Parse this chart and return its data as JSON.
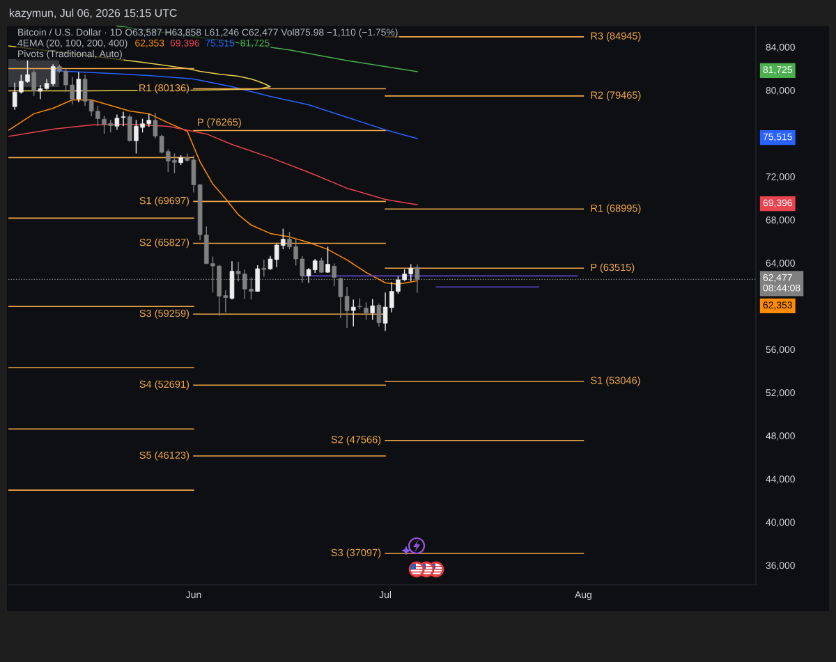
{
  "chart_data": {
    "type": "candlestick",
    "annotations": [
      "kazymun, Jul 06, 2026 15:15 UTC",
      "Bitcoin / U.S. Dollar · 1D O63,587 H63,858 L61,246 C62,477 Vol875.98 −1,110 (−1.75%)",
      "4EMA (20, 100, 200, 400)",
      "Pivots (Traditional, Auto)",
      "62,353",
      "69,396",
      "75,515",
      "81,725"
    ],
    "x": [
      "2026-05-04",
      "2026-05-05",
      "2026-05-06",
      "2026-05-07",
      "2026-05-08",
      "2026-05-09",
      "2026-05-10",
      "2026-05-11",
      "2026-05-12",
      "2026-05-13",
      "2026-05-14",
      "2026-05-15",
      "2026-05-16",
      "2026-05-17",
      "2026-05-18",
      "2026-05-19",
      "2026-05-20",
      "2026-05-21",
      "2026-05-22",
      "2026-05-23",
      "2026-05-24",
      "2026-05-25",
      "2026-05-26",
      "2026-05-27",
      "2026-05-28",
      "2026-05-29",
      "2026-05-30",
      "2026-05-31",
      "2026-06-01",
      "2026-06-02",
      "2026-06-03",
      "2026-06-04",
      "2026-06-05",
      "2026-06-06",
      "2026-06-07",
      "2026-06-08",
      "2026-06-09",
      "2026-06-10",
      "2026-06-11",
      "2026-06-12",
      "2026-06-13",
      "2026-06-14",
      "2026-06-15",
      "2026-06-16",
      "2026-06-17",
      "2026-06-18",
      "2026-06-19",
      "2026-06-20",
      "2026-06-21",
      "2026-06-22",
      "2026-06-23",
      "2026-06-24",
      "2026-06-25",
      "2026-06-26",
      "2026-06-27",
      "2026-06-28",
      "2026-06-29",
      "2026-06-30",
      "2026-07-01",
      "2026-07-02",
      "2026-07-03",
      "2026-07-04",
      "2026-07-05",
      "2026-07-06"
    ],
    "ohlc": [
      [
        78480,
        80700,
        78180,
        79830
      ],
      [
        79830,
        81440,
        79680,
        80840
      ],
      [
        80800,
        82780,
        80700,
        81440
      ],
      [
        81660,
        81870,
        79470,
        79940
      ],
      [
        79900,
        80480,
        79190,
        80150
      ],
      [
        80150,
        81020,
        80050,
        80630
      ],
      [
        80590,
        82410,
        80370,
        82200
      ],
      [
        82200,
        82390,
        81620,
        81760
      ],
      [
        81760,
        81980,
        79830,
        80480
      ],
      [
        80480,
        81230,
        78700,
        79190
      ],
      [
        79190,
        81660,
        78870,
        81020
      ],
      [
        81020,
        81440,
        78540,
        78980
      ],
      [
        79040,
        79120,
        77580,
        78050
      ],
      [
        78050,
        78540,
        76670,
        77360
      ],
      [
        77320,
        77620,
        75970,
        76830
      ],
      [
        76930,
        77250,
        76080,
        76720
      ],
      [
        76670,
        77750,
        76330,
        77410
      ],
      [
        77470,
        78010,
        76670,
        77540
      ],
      [
        77540,
        77750,
        75240,
        75320
      ],
      [
        75320,
        77250,
        74140,
        76670
      ],
      [
        76550,
        77360,
        76080,
        76890
      ],
      [
        76890,
        77800,
        76610,
        77220
      ],
      [
        77220,
        77900,
        75540,
        75750
      ],
      [
        75750,
        75880,
        74140,
        74250
      ],
      [
        74320,
        74530,
        72420,
        73450
      ],
      [
        73500,
        74140,
        72320,
        73320
      ],
      [
        73290,
        73970,
        73070,
        73760
      ],
      [
        73760,
        74140,
        73390,
        73500
      ],
      [
        73540,
        73950,
        70530,
        71240
      ],
      [
        71240,
        71300,
        66090,
        66620
      ],
      [
        66590,
        67380,
        63900,
        63940
      ],
      [
        63940,
        64590,
        61260,
        63720
      ],
      [
        63720,
        63830,
        59110,
        60930
      ],
      [
        60980,
        61470,
        59430,
        60790
      ],
      [
        60720,
        64160,
        60610,
        63230
      ],
      [
        63250,
        64110,
        62290,
        62980
      ],
      [
        62980,
        63400,
        60660,
        61580
      ],
      [
        61580,
        62650,
        60610,
        61370
      ],
      [
        61370,
        63790,
        61340,
        63470
      ],
      [
        63510,
        64310,
        62720,
        63400
      ],
      [
        63450,
        64650,
        63360,
        64370
      ],
      [
        64310,
        65770,
        63620,
        65660
      ],
      [
        65620,
        67170,
        65270,
        66200
      ],
      [
        66200,
        66880,
        65270,
        65490
      ],
      [
        65510,
        66200,
        63770,
        64370
      ],
      [
        64370,
        64650,
        62160,
        62800
      ],
      [
        62820,
        63510,
        62160,
        63400
      ],
      [
        63360,
        64370,
        63080,
        64200
      ],
      [
        64200,
        64480,
        63080,
        63140
      ],
      [
        63140,
        65510,
        63080,
        63880
      ],
      [
        63700,
        63960,
        61840,
        62670
      ],
      [
        62550,
        62650,
        58890,
        60870
      ],
      [
        60930,
        61790,
        57990,
        59580
      ],
      [
        59600,
        60610,
        58140,
        59920
      ],
      [
        59990,
        60720,
        59710,
        59950
      ],
      [
        59820,
        60350,
        58730,
        59370
      ],
      [
        59370,
        60660,
        58730,
        60030
      ],
      [
        60080,
        60230,
        58080,
        58470
      ],
      [
        58420,
        61260,
        57710,
        59920
      ],
      [
        59860,
        62220,
        59430,
        61370
      ],
      [
        61370,
        62760,
        61150,
        62440
      ],
      [
        62440,
        63400,
        62330,
        62980
      ],
      [
        62980,
        63880,
        62330,
        63510
      ],
      [
        63587,
        63858,
        61246,
        62477
      ]
    ],
    "colors": [
      "#eeeeee",
      "#eeeeee",
      "#eeeeee",
      "#808080",
      "#eeeeee",
      "#eeeeee",
      "#eeeeee",
      "#808080",
      "#808080",
      "#808080",
      "#eeeeee",
      "#808080",
      "#808080",
      "#808080",
      "#808080",
      "#808080",
      "#eeeeee",
      "#eeeeee",
      "#808080",
      "#eeeeee",
      "#eeeeee",
      "#eeeeee",
      "#808080",
      "#808080",
      "#808080",
      "#808080",
      "#eeeeee",
      "#808080",
      "#808080",
      "#808080",
      "#808080",
      "#808080",
      "#808080",
      "#808080",
      "#eeeeee",
      "#808080",
      "#808080",
      "#808080",
      "#eeeeee",
      "#808080",
      "#eeeeee",
      "#eeeeee",
      "#eeeeee",
      "#808080",
      "#808080",
      "#808080",
      "#eeeeee",
      "#eeeeee",
      "#808080",
      "#eeeeee",
      "#808080",
      "#808080",
      "#808080",
      "#eeeeee",
      "#808080",
      "#808080",
      "#eeeeee",
      "#808080",
      "#eeeeee",
      "#eeeeee",
      "#eeeeee",
      "#eeeeee",
      "#eeeeee",
      "#808080"
    ],
    "xlim": [
      "2026-05-03",
      "2026-08-28"
    ],
    "xticks": [
      {
        "value": "2026-06-01",
        "label": "Jun"
      },
      {
        "value": "2026-07-01",
        "label": "Jul"
      },
      {
        "value": "2026-08-01",
        "label": "Aug"
      }
    ],
    "ylim": [
      34200,
      86000
    ],
    "yticks": [
      {
        "value": 36000,
        "label": "36,000"
      },
      {
        "value": 40000,
        "label": "40,000"
      },
      {
        "value": 44000,
        "label": "44,000"
      },
      {
        "value": 48000,
        "label": "48,000"
      },
      {
        "value": 52000,
        "label": "52,000"
      },
      {
        "value": 56000,
        "label": "56,000"
      },
      {
        "value": 64000,
        "label": "64,000"
      },
      {
        "value": 68000,
        "label": "68,000"
      },
      {
        "value": 72000,
        "label": "72,000"
      },
      {
        "value": 80000,
        "label": "80,000"
      },
      {
        "value": 84000,
        "label": "84,000"
      }
    ],
    "ref_lines": [
      {
        "axis": "y",
        "value": 62477,
        "label": "62,477\n08:44:08",
        "color": "#808080",
        "line_style": "dotted"
      }
    ],
    "series": [
      {
        "type": "line",
        "name": "62,353",
        "color": "#ff8c00",
        "x": [
          "2026-05-03",
          "2026-05-07",
          "2026-05-10",
          "2026-05-13",
          "2026-05-16",
          "2026-05-19",
          "2026-05-22",
          "2026-05-25",
          "2026-05-28",
          "2026-05-31",
          "2026-06-02",
          "2026-06-04",
          "2026-06-06",
          "2026-06-08",
          "2026-06-10",
          "2026-06-13",
          "2026-06-16",
          "2026-06-19",
          "2026-06-22",
          "2026-06-25",
          "2026-06-28",
          "2026-07-01",
          "2026-07-03",
          "2026-07-06"
        ],
        "values": [
          76270,
          77820,
          78330,
          79100,
          79100,
          78590,
          78070,
          77820,
          76980,
          76200,
          73370,
          71310,
          69950,
          68470,
          67510,
          66730,
          66410,
          65900,
          65250,
          64280,
          63120,
          62160,
          62030,
          62353
        ]
      },
      {
        "type": "line",
        "name": "69,396",
        "color": "#e8434f",
        "x": [
          "2026-05-03",
          "2026-05-10",
          "2026-05-16",
          "2026-05-22",
          "2026-05-28",
          "2026-06-03",
          "2026-06-07",
          "2026-06-13",
          "2026-06-19",
          "2026-06-25",
          "2026-07-01",
          "2026-07-06"
        ],
        "values": [
          75720,
          76400,
          76780,
          76850,
          76650,
          75950,
          74980,
          73760,
          72400,
          70920,
          69890,
          69396
        ]
      },
      {
        "type": "line",
        "name": "75,515",
        "color": "#2962ff",
        "x": [
          "2026-05-10",
          "2026-05-19",
          "2026-05-25",
          "2026-06-01",
          "2026-06-07",
          "2026-06-13",
          "2026-06-19",
          "2026-06-25",
          "2026-07-01",
          "2026-07-06"
        ],
        "values": [
          81810,
          81550,
          81360,
          81040,
          80330,
          79430,
          78650,
          77490,
          76330,
          75515
        ]
      },
      {
        "type": "line",
        "name": "81,725",
        "color": "#4caf50",
        "x": [
          "2026-05-20",
          "2026-06-16",
          "2026-06-25",
          "2026-07-06"
        ],
        "values": [
          85950,
          83730,
          82750,
          81725
        ]
      },
      {
        "type": "line",
        "color": "#e6cf4a",
        "x": [
          "2026-05-03",
          "2026-05-24",
          "2026-05-28",
          "2026-05-31",
          "2026-06-02",
          "2026-06-05",
          "2026-06-08",
          "2026-06-10",
          "2026-06-11",
          "2026-06-12",
          "2026-06-13",
          "2026-06-11",
          "2026-06-01",
          "2026-05-15",
          "2026-05-03"
        ],
        "values": [
          84100,
          82580,
          82260,
          82000,
          81750,
          81490,
          81290,
          81040,
          80840,
          80620,
          80330,
          80100,
          80000,
          79940,
          79940
        ]
      },
      {
        "type": "line",
        "color": "#f0a848",
        "x": [
          "2026-05-03",
          "2026-06-01"
        ],
        "values": [
          82000,
          82000
        ]
      },
      {
        "type": "line",
        "color": "#f0a848",
        "x": [
          "2026-05-03",
          "2026-06-01"
        ],
        "values": [
          73760,
          73760
        ]
      },
      {
        "type": "line",
        "color": "#f0a848",
        "x": [
          "2026-05-03",
          "2026-06-01"
        ],
        "values": [
          68150,
          68150
        ]
      },
      {
        "type": "line",
        "color": "#f0a848",
        "x": [
          "2026-05-03",
          "2026-06-01"
        ],
        "values": [
          59970,
          59970
        ]
      },
      {
        "type": "line",
        "color": "#f0a848",
        "x": [
          "2026-05-03",
          "2026-06-01"
        ],
        "values": [
          54300,
          54300
        ]
      },
      {
        "type": "line",
        "color": "#f0a848",
        "x": [
          "2026-05-03",
          "2026-06-01"
        ],
        "values": [
          48630,
          48630
        ]
      },
      {
        "type": "line",
        "color": "#f0a848",
        "x": [
          "2026-05-03",
          "2026-06-01"
        ],
        "values": [
          42960,
          42960
        ]
      },
      {
        "type": "line",
        "name": "R1 (80136)",
        "color": "#f0a848",
        "x": [
          "2026-06-01",
          "2026-07-01"
        ],
        "values": [
          80136,
          80136
        ]
      },
      {
        "type": "line",
        "name": "P (76265)",
        "color": "#f0a848",
        "x": [
          "2026-06-01",
          "2026-07-01"
        ],
        "values": [
          76265,
          76265
        ]
      },
      {
        "type": "line",
        "name": "S1 (69697)",
        "color": "#f0a848",
        "x": [
          "2026-06-01",
          "2026-07-01"
        ],
        "values": [
          69697,
          69697
        ]
      },
      {
        "type": "line",
        "name": "S2 (65827)",
        "color": "#f0a848",
        "x": [
          "2026-06-01",
          "2026-07-01"
        ],
        "values": [
          65827,
          65827
        ]
      },
      {
        "type": "line",
        "name": "S3 (59259)",
        "color": "#f0a848",
        "x": [
          "2026-06-01",
          "2026-07-01"
        ],
        "values": [
          59259,
          59259
        ]
      },
      {
        "type": "line",
        "name": "S4 (52691)",
        "color": "#f0a848",
        "x": [
          "2026-06-01",
          "2026-07-01"
        ],
        "values": [
          52691,
          52691
        ]
      },
      {
        "type": "line",
        "name": "S5 (46123)",
        "color": "#f0a848",
        "x": [
          "2026-06-01",
          "2026-07-01"
        ],
        "values": [
          46123,
          46123
        ]
      },
      {
        "type": "line",
        "name": "R3 (84945)",
        "color": "#f0a848",
        "x": [
          "2026-07-01",
          "2026-08-01"
        ],
        "values": [
          84945,
          84945
        ]
      },
      {
        "type": "line",
        "name": "R2 (79465)",
        "color": "#f0a848",
        "x": [
          "2026-07-01",
          "2026-08-01"
        ],
        "values": [
          79465,
          79465
        ]
      },
      {
        "type": "line",
        "name": "R1 (68995)",
        "color": "#f0a848",
        "x": [
          "2026-07-01",
          "2026-08-01"
        ],
        "values": [
          68995,
          68995
        ]
      },
      {
        "type": "line",
        "name": "P (63515)",
        "color": "#f0a848",
        "x": [
          "2026-07-01",
          "2026-08-01"
        ],
        "values": [
          63515,
          63515
        ]
      },
      {
        "type": "line",
        "name": "S1 (53046)",
        "color": "#f0a848",
        "x": [
          "2026-07-01",
          "2026-08-01"
        ],
        "values": [
          53046,
          53046
        ]
      },
      {
        "type": "line",
        "name": "S2 (47566)",
        "color": "#f0a848",
        "x": [
          "2026-07-01",
          "2026-08-01"
        ],
        "values": [
          47566,
          47566
        ]
      },
      {
        "type": "line",
        "name": "S3 (37097)",
        "color": "#f0a848",
        "x": [
          "2026-07-01",
          "2026-08-01"
        ],
        "values": [
          37097,
          37097
        ]
      },
      {
        "type": "line",
        "color": "#5b45c9",
        "x": [
          "2026-06-18",
          "2026-07-31"
        ],
        "values": [
          62800,
          62800
        ]
      },
      {
        "type": "line",
        "color": "#5b45c9",
        "x": [
          "2026-07-09",
          "2026-07-25"
        ],
        "values": [
          61770,
          61770
        ]
      }
    ]
  }
}
